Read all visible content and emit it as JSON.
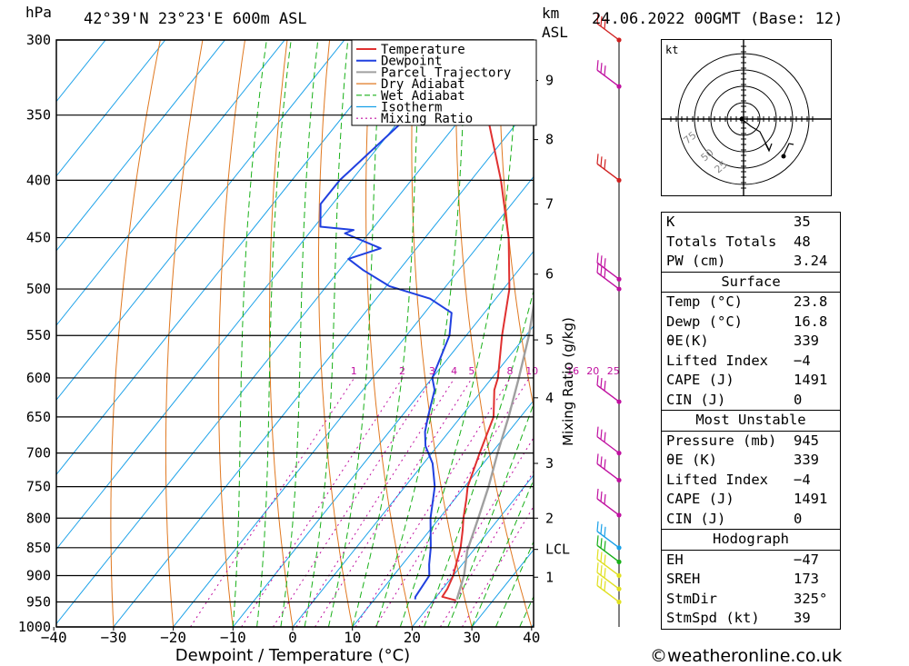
{
  "header": {
    "location": "42°39'N  23°23'E  600m  ASL",
    "datetime": "24.06.2022  00GMT  (Base: 12)",
    "pressure_unit": "hPa",
    "height_unit": "km",
    "height_unit2": "ASL"
  },
  "chart_data": {
    "type": "line",
    "xlabel": "Dewpoint / Temperature (°C)",
    "ylabel": "hPa",
    "ylabel_right": "Mixing Ratio (g/kg)",
    "x_ticks": [
      "−40",
      "−30",
      "−20",
      "−10",
      "0",
      "10",
      "20",
      "30",
      "40"
    ],
    "x_range": [
      -40,
      40
    ],
    "y_range": [
      1000,
      300
    ],
    "pressure_levels": [
      "300",
      "350",
      "400",
      "450",
      "500",
      "550",
      "600",
      "650",
      "700",
      "750",
      "800",
      "850",
      "900",
      "950",
      "1000"
    ],
    "height_ticks": [
      {
        "label": "9",
        "p": 326
      },
      {
        "label": "8",
        "p": 368
      },
      {
        "label": "7",
        "p": 420
      },
      {
        "label": "6",
        "p": 485
      },
      {
        "label": "5",
        "p": 555
      },
      {
        "label": "4",
        "p": 625
      },
      {
        "label": "3",
        "p": 715
      },
      {
        "label": "2",
        "p": 800
      },
      {
        "label": "LCL",
        "p": 853
      },
      {
        "label": "1",
        "p": 903
      }
    ],
    "mixing_ratio_labels": [
      "1",
      "2",
      "3",
      "4",
      "5",
      "8",
      "10",
      "16",
      "20",
      "25"
    ],
    "legend": [
      "Temperature",
      "Dewpoint",
      "Parcel Trajectory",
      "Dry Adiabat",
      "Wet Adiabat",
      "Isotherm",
      "Mixing Ratio"
    ],
    "colors": {
      "temperature": "#e03030",
      "dewpoint": "#2040e0",
      "parcel": "#a0a0a0",
      "dry_adiabat": "#e07820",
      "wet_adiabat": "#18b018",
      "isotherm": "#18a0e8",
      "mixing_ratio": "#c010a0"
    },
    "series": [
      {
        "name": "Temperature",
        "points": [
          [
            947,
            23.8
          ],
          [
            940,
            21
          ],
          [
            925,
            20.8
          ],
          [
            900,
            20
          ],
          [
            880,
            19
          ],
          [
            850,
            17.5
          ],
          [
            820,
            15.5
          ],
          [
            800,
            14
          ],
          [
            770,
            12
          ],
          [
            750,
            10.5
          ],
          [
            700,
            8
          ],
          [
            650,
            5.5
          ],
          [
            615,
            2
          ],
          [
            600,
            1
          ],
          [
            550,
            -4
          ],
          [
            500,
            -9
          ],
          [
            450,
            -16
          ],
          [
            430,
            -19.5
          ],
          [
            400,
            -25
          ],
          [
            350,
            -36
          ],
          [
            320,
            -44
          ],
          [
            300,
            -50
          ]
        ]
      },
      {
        "name": "Dewpoint",
        "points": [
          [
            945,
            16.8
          ],
          [
            940,
            16.5
          ],
          [
            900,
            16
          ],
          [
            880,
            14.5
          ],
          [
            850,
            12.5
          ],
          [
            800,
            8.5
          ],
          [
            750,
            5
          ],
          [
            715,
            1.5
          ],
          [
            690,
            -2
          ],
          [
            670,
            -4
          ],
          [
            650,
            -5.5
          ],
          [
            615,
            -8
          ],
          [
            600,
            -10
          ],
          [
            550,
            -12.8
          ],
          [
            525,
            -15.5
          ],
          [
            510,
            -21
          ],
          [
            497,
            -29.5
          ],
          [
            481,
            -36
          ],
          [
            470,
            -40
          ],
          [
            460,
            -36
          ],
          [
            446,
            -44
          ],
          [
            443,
            -43
          ],
          [
            440,
            -49
          ],
          [
            420,
            -52
          ],
          [
            400,
            -52
          ],
          [
            320,
            -47
          ],
          [
            316,
            -43
          ],
          [
            308,
            -50
          ],
          [
            300,
            -50
          ]
        ]
      },
      {
        "name": "Parcel Trajectory",
        "points": [
          [
            945,
            23.8
          ],
          [
            900,
            21.8
          ],
          [
            855,
            19
          ],
          [
            800,
            16.5
          ],
          [
            750,
            14
          ],
          [
            700,
            11
          ],
          [
            650,
            8
          ],
          [
            600,
            4.5
          ],
          [
            550,
            0.5
          ],
          [
            500,
            -4.5
          ],
          [
            450,
            -10.5
          ],
          [
            400,
            -18
          ],
          [
            350,
            -28
          ],
          [
            300,
            -39
          ]
        ]
      }
    ]
  },
  "wind_barbs": [
    {
      "p": 300,
      "color": "#d02020"
    },
    {
      "p": 330,
      "color": "#c010a0"
    },
    {
      "p": 400,
      "color": "#d02020"
    },
    {
      "p": 490,
      "color": "#c010a0"
    },
    {
      "p": 500,
      "color": "#c010a0"
    },
    {
      "p": 630,
      "color": "#c010a0"
    },
    {
      "p": 700,
      "color": "#c010a0"
    },
    {
      "p": 740,
      "color": "#c010a0"
    },
    {
      "p": 795,
      "color": "#c010a0"
    },
    {
      "p": 850,
      "color": "#18a0e8"
    },
    {
      "p": 875,
      "color": "#18b018"
    },
    {
      "p": 900,
      "color": "#e0e020"
    },
    {
      "p": 925,
      "color": "#e0e020"
    },
    {
      "p": 950,
      "color": "#e0e020"
    }
  ],
  "hodograph": {
    "unit": "kt",
    "ring_labels": [
      "25",
      "50",
      "75"
    ]
  },
  "indices": {
    "top": [
      {
        "k": "K",
        "v": "35"
      },
      {
        "k": "Totals Totals",
        "v": "48"
      },
      {
        "k": "PW (cm)",
        "v": "3.24"
      }
    ],
    "surface_title": "Surface",
    "surface": [
      {
        "k": "Temp (°C)",
        "v": "23.8"
      },
      {
        "k": "Dewp (°C)",
        "v": "16.8"
      },
      {
        "k": "θE(K)",
        "v": "339"
      },
      {
        "k": "Lifted Index",
        "v": "−4"
      },
      {
        "k": "CAPE (J)",
        "v": "1491"
      },
      {
        "k": "CIN (J)",
        "v": "0"
      }
    ],
    "mu_title": "Most Unstable",
    "mu": [
      {
        "k": "Pressure (mb)",
        "v": "945"
      },
      {
        "k": "θE (K)",
        "v": "339"
      },
      {
        "k": "Lifted Index",
        "v": "−4"
      },
      {
        "k": "CAPE (J)",
        "v": "1491"
      },
      {
        "k": "CIN (J)",
        "v": "0"
      }
    ],
    "hodo_title": "Hodograph",
    "hodo": [
      {
        "k": "EH",
        "v": "−47"
      },
      {
        "k": "SREH",
        "v": "173"
      },
      {
        "k": "StmDir",
        "v": "325°"
      },
      {
        "k": "StmSpd (kt)",
        "v": "39"
      }
    ]
  },
  "credit": "©weatheronline.co.uk"
}
